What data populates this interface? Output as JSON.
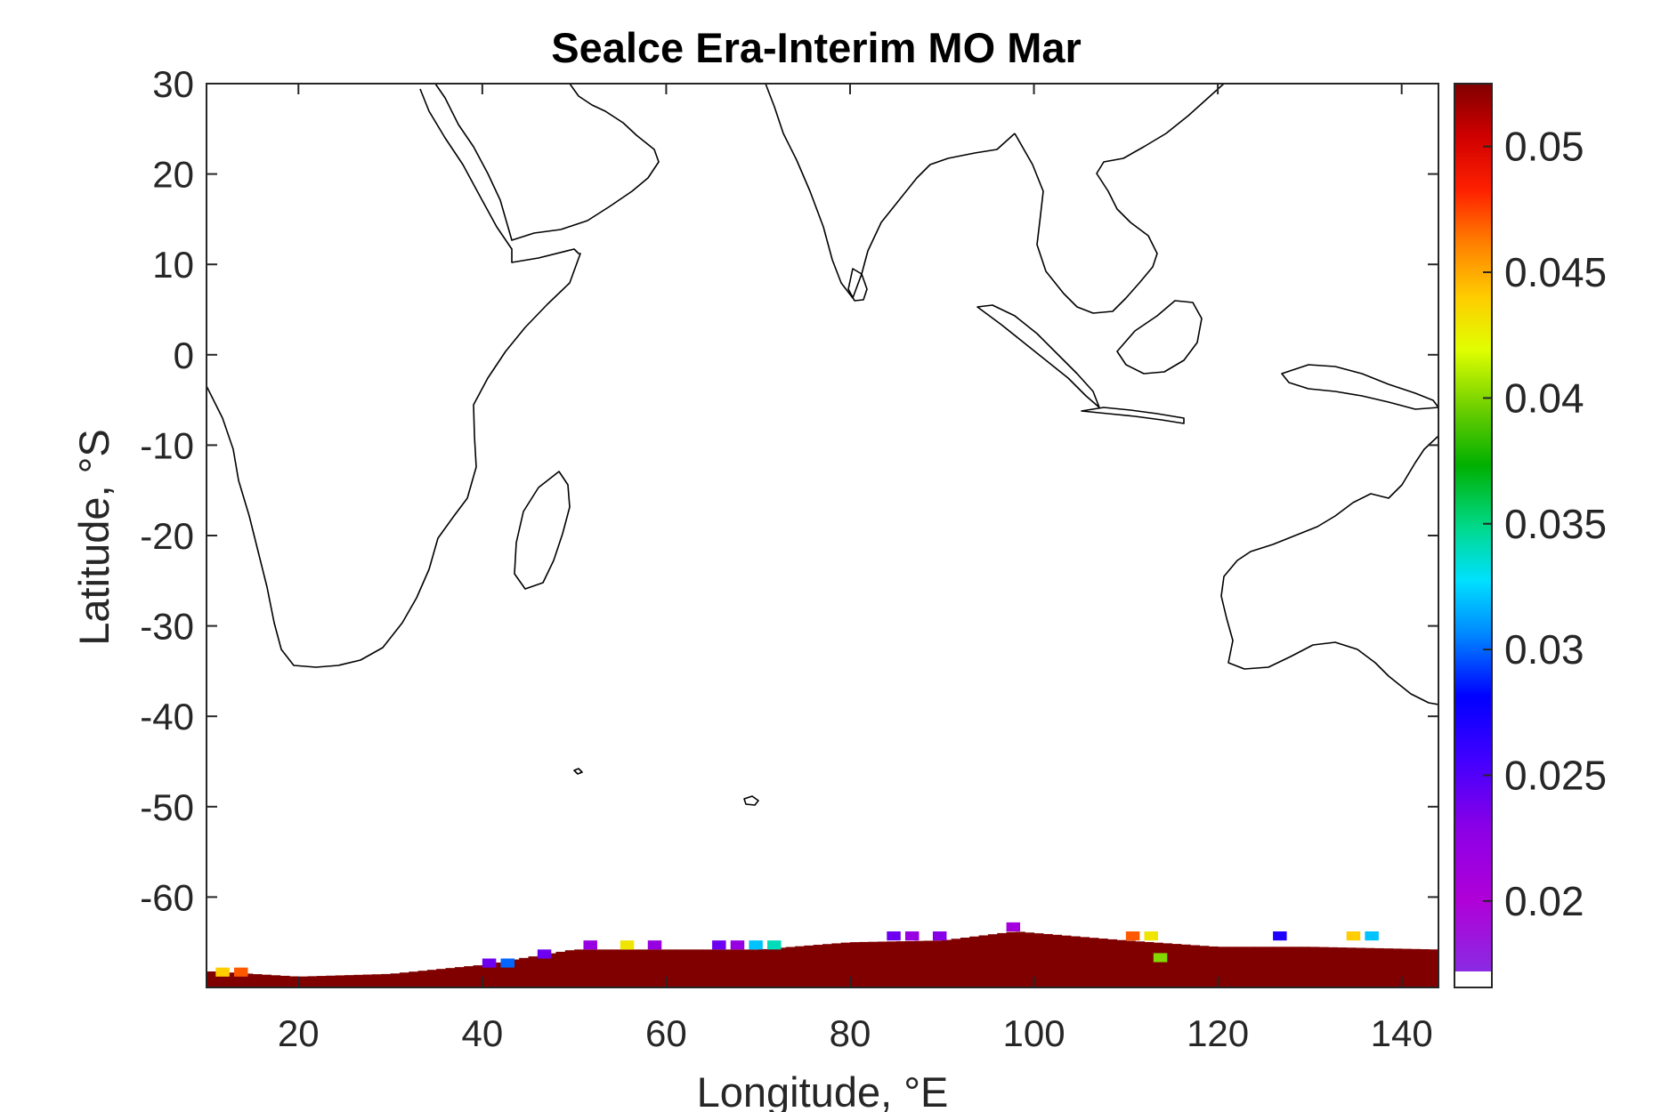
{
  "title": "Sealce Era-Interim MO Mar",
  "x_axis": {
    "label": "Longitude, °E",
    "range": [
      10,
      144
    ],
    "ticks": [
      20,
      40,
      60,
      80,
      100,
      120,
      140
    ],
    "tick_labels": [
      "20",
      "40",
      "60",
      "80",
      "100",
      "120",
      "140"
    ]
  },
  "y_axis": {
    "label": "Latitude, °S",
    "range": [
      -70,
      30
    ],
    "ticks": [
      30,
      20,
      10,
      0,
      -10,
      -20,
      -30,
      -40,
      -50,
      -60
    ],
    "tick_labels": [
      "30",
      "20",
      "10",
      "0",
      "-10",
      "-20",
      "-30",
      "-40",
      "-50",
      "-60"
    ]
  },
  "colorbar": {
    "range": [
      0.0172,
      0.0525
    ],
    "ticks": [
      0.05,
      0.045,
      0.04,
      0.035,
      0.03,
      0.025,
      0.02
    ],
    "tick_labels": [
      "0.05",
      "0.045",
      "0.04",
      "0.035",
      "0.03",
      "0.025",
      "0.02"
    ],
    "colormap": "jet-like (purple → blue → cyan → green → yellow → orange → red → dark red)"
  },
  "chart_data": {
    "type": "heatmap",
    "title": "Sealce Era-Interim MO Mar",
    "xlabel": "Longitude, °E",
    "ylabel": "Latitude, °S",
    "xlim": [
      10,
      144
    ],
    "ylim": [
      -70,
      30
    ],
    "clim": [
      0.0172,
      0.0525
    ],
    "background": "coastline map of the Indian Ocean region (Africa, Arabia, India, SE Asia, Australia, Antarctica coast)",
    "sea_ice_band": {
      "description": "band of near-maximum values (dark red, ~0.0525) along the Antarctic coast with scattered lower-value cells at its edges",
      "edge_profile": [
        {
          "lon": 10,
          "north_edge_lat": -68.2
        },
        {
          "lon": 20,
          "north_edge_lat": -68.8
        },
        {
          "lon": 30,
          "north_edge_lat": -68.5
        },
        {
          "lon": 40,
          "north_edge_lat": -67.5
        },
        {
          "lon": 50,
          "north_edge_lat": -65.8
        },
        {
          "lon": 60,
          "north_edge_lat": -65.8
        },
        {
          "lon": 70,
          "north_edge_lat": -65.8
        },
        {
          "lon": 80,
          "north_edge_lat": -65.0
        },
        {
          "lon": 90,
          "north_edge_lat": -64.8
        },
        {
          "lon": 98,
          "north_edge_lat": -63.8
        },
        {
          "lon": 110,
          "north_edge_lat": -64.8
        },
        {
          "lon": 120,
          "north_edge_lat": -65.5
        },
        {
          "lon": 130,
          "north_edge_lat": -65.5
        },
        {
          "lon": 144,
          "north_edge_lat": -65.8
        }
      ],
      "edge_cells": [
        {
          "lon": 11,
          "lat": -68.3,
          "value": 0.044
        },
        {
          "lon": 13,
          "lat": -68.3,
          "value": 0.047
        },
        {
          "lon": 40,
          "lat": -67.3,
          "value": 0.024
        },
        {
          "lon": 42,
          "lat": -67.3,
          "value": 0.03
        },
        {
          "lon": 46,
          "lat": -66.3,
          "value": 0.024
        },
        {
          "lon": 51,
          "lat": -65.3,
          "value": 0.022
        },
        {
          "lon": 55,
          "lat": -65.3,
          "value": 0.043
        },
        {
          "lon": 58,
          "lat": -65.3,
          "value": 0.022
        },
        {
          "lon": 65,
          "lat": -65.3,
          "value": 0.024
        },
        {
          "lon": 67,
          "lat": -65.3,
          "value": 0.022
        },
        {
          "lon": 69,
          "lat": -65.3,
          "value": 0.032
        },
        {
          "lon": 71,
          "lat": -65.3,
          "value": 0.034
        },
        {
          "lon": 84,
          "lat": -64.3,
          "value": 0.024
        },
        {
          "lon": 86,
          "lat": -64.3,
          "value": 0.022
        },
        {
          "lon": 89,
          "lat": -64.3,
          "value": 0.023
        },
        {
          "lon": 97,
          "lat": -63.3,
          "value": 0.021
        },
        {
          "lon": 110,
          "lat": -64.3,
          "value": 0.047
        },
        {
          "lon": 112,
          "lat": -64.3,
          "value": 0.043
        },
        {
          "lon": 113,
          "lat": -66.7,
          "value": 0.04
        },
        {
          "lon": 126,
          "lat": -64.3,
          "value": 0.027
        },
        {
          "lon": 134,
          "lat": -64.3,
          "value": 0.044
        },
        {
          "lon": 136,
          "lat": -64.3,
          "value": 0.032
        }
      ]
    }
  },
  "colors": {
    "max_value": "#800000",
    "axes": "#262626",
    "coastline": "#000000"
  }
}
